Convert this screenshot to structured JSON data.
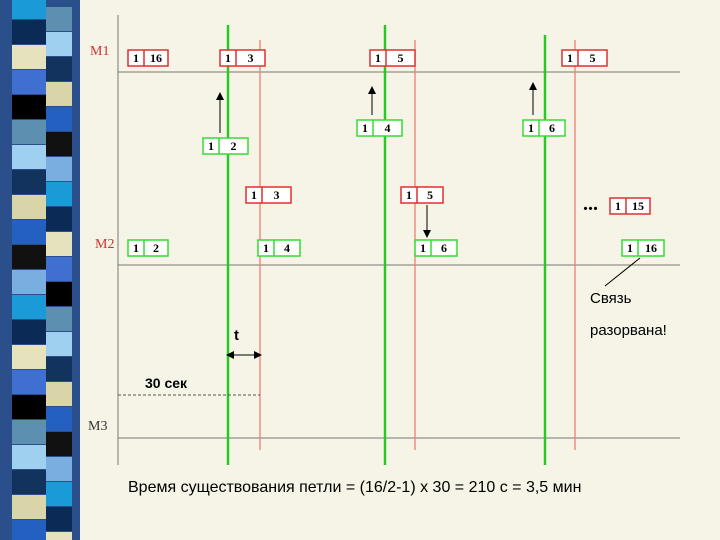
{
  "levels": [
    "M1",
    "M2",
    "M3"
  ],
  "boxes": [
    {
      "a": "1",
      "b": "16"
    },
    {
      "a": "1",
      "b": "3"
    },
    {
      "a": "1",
      "b": "5"
    },
    {
      "a": "1",
      "b": "5"
    },
    {
      "a": "1",
      "b": "2"
    },
    {
      "a": "1",
      "b": "4"
    },
    {
      "a": "1",
      "b": "6"
    },
    {
      "a": "1",
      "b": "3"
    },
    {
      "a": "1",
      "b": "5"
    },
    {
      "a": "1",
      "b": "15"
    },
    {
      "a": "1",
      "b": "2"
    },
    {
      "a": "1",
      "b": "4"
    },
    {
      "a": "1",
      "b": "6"
    },
    {
      "a": "1",
      "b": "16"
    }
  ],
  "ellipsis": "...",
  "t_label": "t",
  "interval_label": "30 сек",
  "note": [
    "Связь",
    "разорвана!"
  ],
  "formula": "Время существования петли = (16/2-1) x 30 = 210 с = 3,5 мин"
}
